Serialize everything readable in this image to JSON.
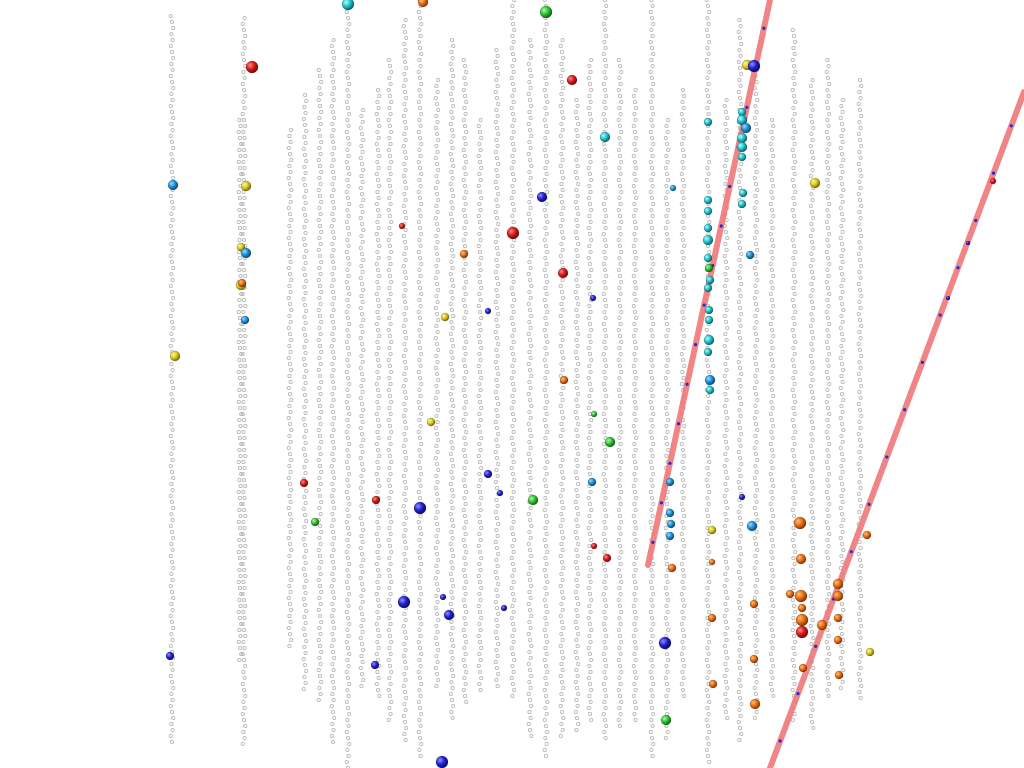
{
  "scene": {
    "background": "#ffffff",
    "kind": "particle-detector event display (string-array of optical modules with hit spheres and reconstructed tracks)"
  },
  "colors": {
    "dom": "#b8b8b8",
    "track": "#f07878",
    "track_dot": "#2a2ad0",
    "hit_palette": [
      "#d81818",
      "#e86c10",
      "#e0c818",
      "#30c030",
      "#20c0c8",
      "#1890d8",
      "#2020d0"
    ]
  },
  "counts": {
    "strings_visible": 31,
    "tracks": 2
  }
}
